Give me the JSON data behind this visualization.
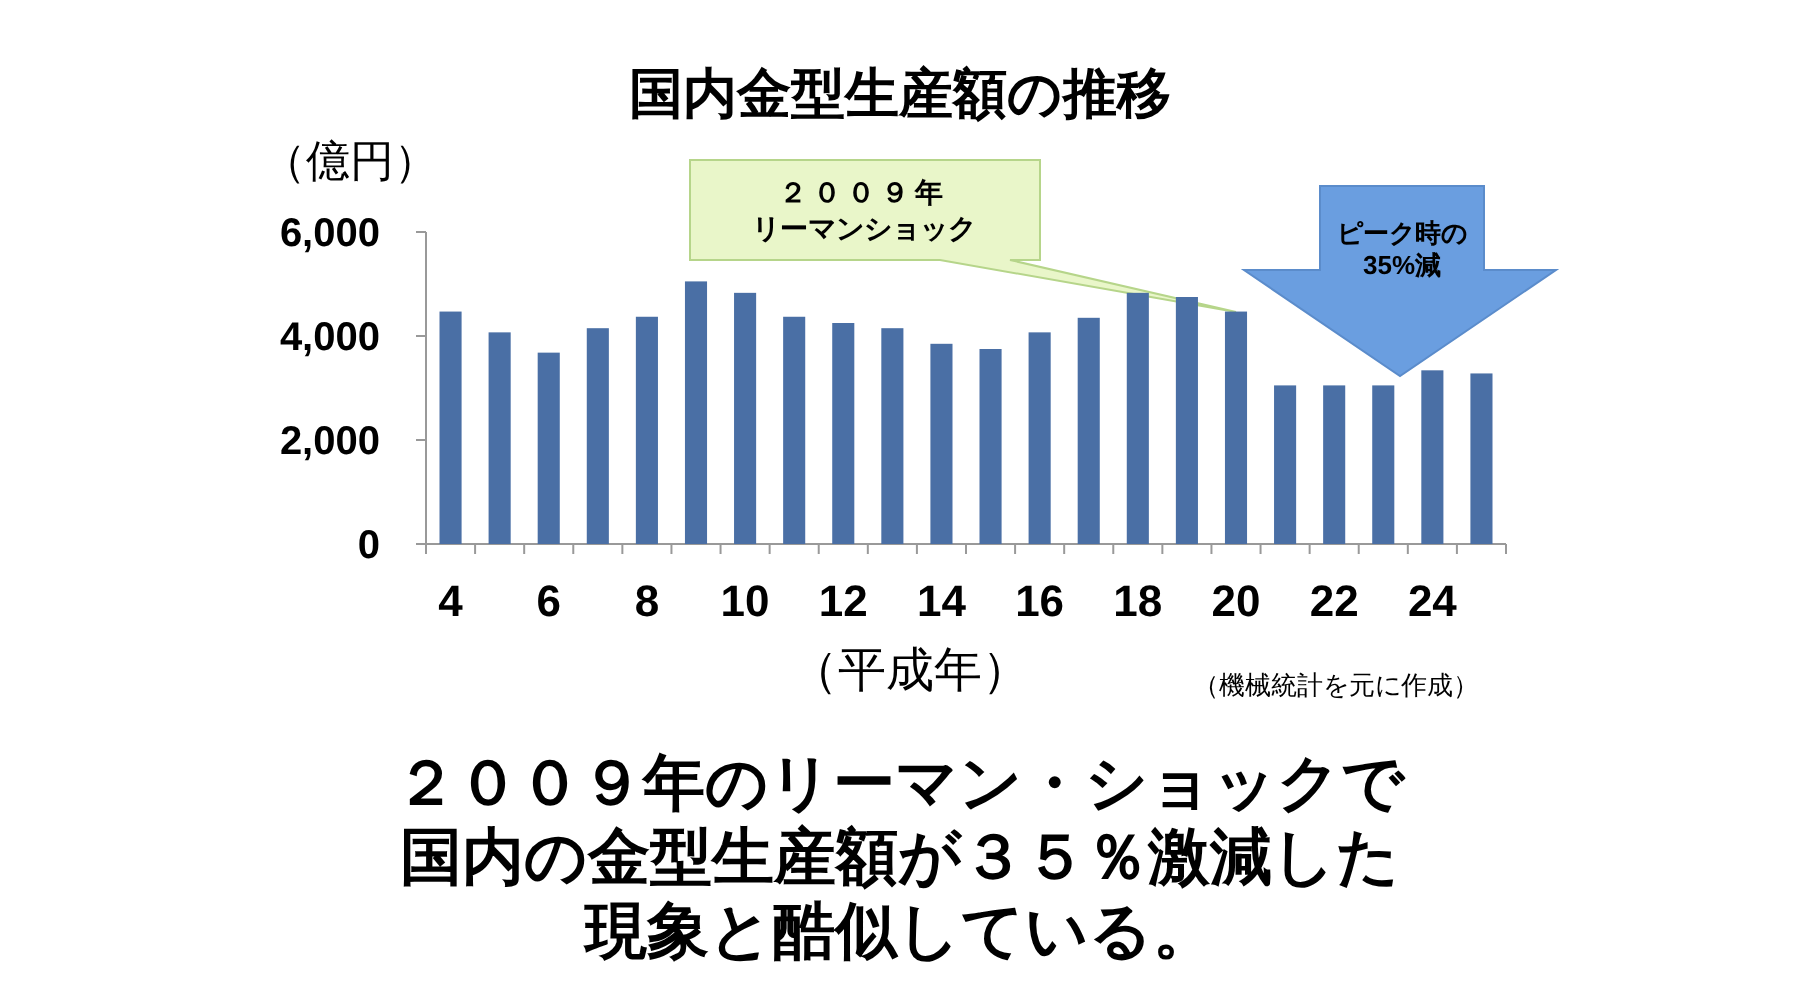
{
  "chart_data": {
    "type": "bar",
    "title": "国内金型生産額の推移",
    "ylabel": "（億円）",
    "xlabel": "（平成年）",
    "categories": [
      "4",
      null,
      "6",
      null,
      "8",
      null,
      "10",
      null,
      "12",
      null,
      "14",
      null,
      "16",
      null,
      "18",
      null,
      "20",
      null,
      "22",
      null,
      "24",
      null
    ],
    "values": [
      4470,
      4070,
      3680,
      4150,
      4370,
      5050,
      4830,
      4370,
      4250,
      4150,
      3850,
      3750,
      4070,
      4350,
      4830,
      4750,
      4470,
      3050,
      3050,
      3050,
      3340,
      3280
    ],
    "color": "#4a6fa5",
    "ylim": [
      0,
      6000
    ],
    "yticks": [
      {
        "value": 0,
        "label": "0"
      },
      {
        "value": 2000,
        "label": "2,000"
      },
      {
        "value": 4000,
        "label": "4,000"
      },
      {
        "value": 6000,
        "label": "6,000"
      }
    ],
    "grid": false,
    "annotations": [
      "２００９年",
      "リーマンショック",
      "ピーク時の",
      "35%減",
      "（機械統計を元に作成）",
      "２００９年のリーマン・ショックで国内の金型生産額が３５％激減した現象と酷似している。"
    ]
  }
}
